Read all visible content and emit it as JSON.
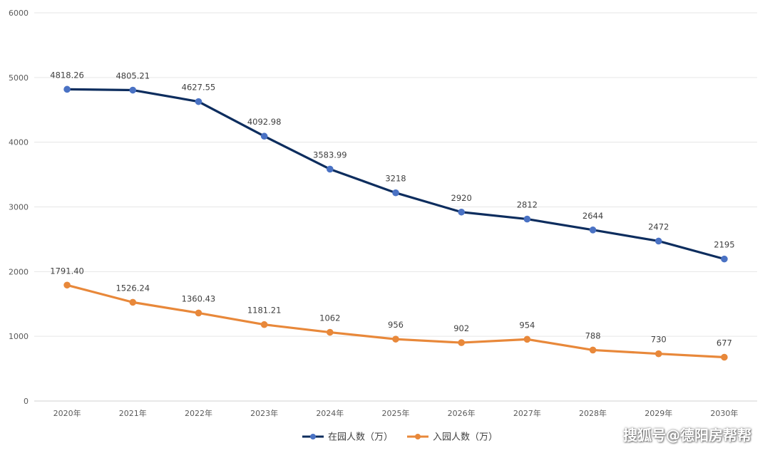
{
  "chart_data": {
    "type": "line",
    "title": "",
    "xlabel": "",
    "ylabel": "",
    "categories": [
      "2020年",
      "2021年",
      "2022年",
      "2023年",
      "2024年",
      "2025年",
      "2026年",
      "2027年",
      "2028年",
      "2029年",
      "2030年"
    ],
    "series": [
      {
        "name": "在园人数（万）",
        "color": "#0d2d5e",
        "marker_color": "#4a72c4",
        "values": [
          4818.26,
          4805.21,
          4627.55,
          4092.98,
          3583.99,
          3218,
          2920,
          2812,
          2644,
          2472,
          2195
        ],
        "labels": [
          "4818.26",
          "4805.21",
          "4627.55",
          "4092.98",
          "3583.99",
          "3218",
          "2920",
          "2812",
          "2644",
          "2472",
          "2195"
        ]
      },
      {
        "name": "入园人数（万）",
        "color": "#e8883a",
        "marker_color": "#e8883a",
        "values": [
          1791.4,
          1526.24,
          1360.43,
          1181.21,
          1062,
          956,
          902,
          954,
          788,
          730,
          677
        ],
        "labels": [
          "1791.40",
          "1526.24",
          "1360.43",
          "1181.21",
          "1062",
          "956",
          "902",
          "954",
          "788",
          "730",
          "677"
        ]
      }
    ],
    "ylim": [
      0,
      6000
    ],
    "yticks": [
      0,
      1000,
      2000,
      3000,
      4000,
      5000,
      6000
    ],
    "grid": true,
    "legend": "bottom-center"
  },
  "watermark": "搜狐号@德阳房帮帮"
}
